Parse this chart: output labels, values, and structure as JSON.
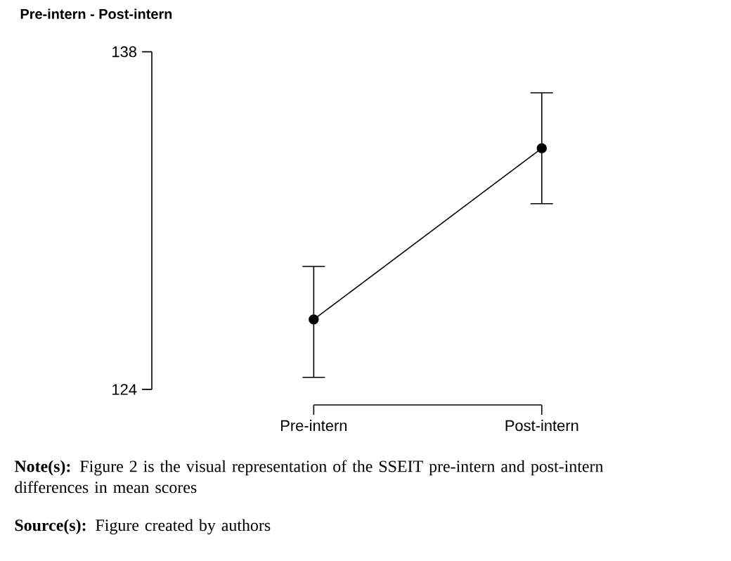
{
  "chart_data": {
    "type": "line",
    "title": "Pre-intern - Post-intern",
    "categories": [
      "Pre-intern",
      "Post-intern"
    ],
    "values": [
      126.9,
      134.0
    ],
    "errors": [
      [
        124.5,
        129.1
      ],
      [
        131.7,
        136.3
      ]
    ],
    "color": "#000000",
    "marker": "circle",
    "line_style": "solid",
    "ylim": [
      124,
      138
    ],
    "yticks": [
      124,
      138
    ],
    "annotations": [
      "**Note(s):** Figure 2 is the visual representation of the SSEIT pre-intern and post-intern differences in mean scores",
      "**Source(s):** Figure created by authors"
    ]
  }
}
